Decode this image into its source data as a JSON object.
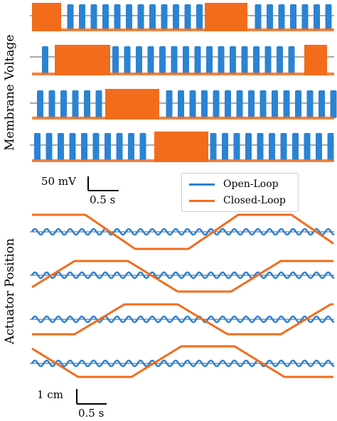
{
  "chart_data": [
    {
      "type": "line",
      "title": "",
      "ylabel": "Membrane Voltage",
      "panels": 4,
      "scalebar": {
        "vertical_label": "50 mV",
        "horizontal_label": "0.5 s"
      },
      "series": [
        {
          "name": "Open-Loop",
          "color": "#2b83d3",
          "description_values": {
            "spikes_per_second_per_panel": 6.5,
            "bursts_in_each_panel": "periodic"
          }
        },
        {
          "name": "Closed-Loop",
          "color": "#f36c1c",
          "burst_panel_windows_s": [
            [
              0.0,
              0.55
            ],
            [
              1.75,
              2.48
            ],
            [
              2.55,
              3.27
            ],
            [
              3.35,
              4.1
            ]
          ]
        }
      ]
    },
    {
      "type": "line",
      "title": "",
      "ylabel": "Actuator Position",
      "panels": 4,
      "scalebar": {
        "vertical_label": "1 cm",
        "horizontal_label": "0.5 s"
      },
      "series": [
        {
          "name": "Open-Loop",
          "color": "#2b83d3",
          "shape": "small sinusoid"
        },
        {
          "name": "Closed-Loop",
          "color": "#f36c1c",
          "shape": "trapezoidal wave"
        }
      ]
    }
  ],
  "legend": {
    "entries": [
      {
        "label": "Open-Loop",
        "color": "#2b83d3"
      },
      {
        "label": "Closed-Loop",
        "color": "#f36c1c"
      }
    ]
  },
  "colors": {
    "open_loop": "#2b83d3",
    "closed_loop": "#f36c1c",
    "baseline": "#555555"
  }
}
